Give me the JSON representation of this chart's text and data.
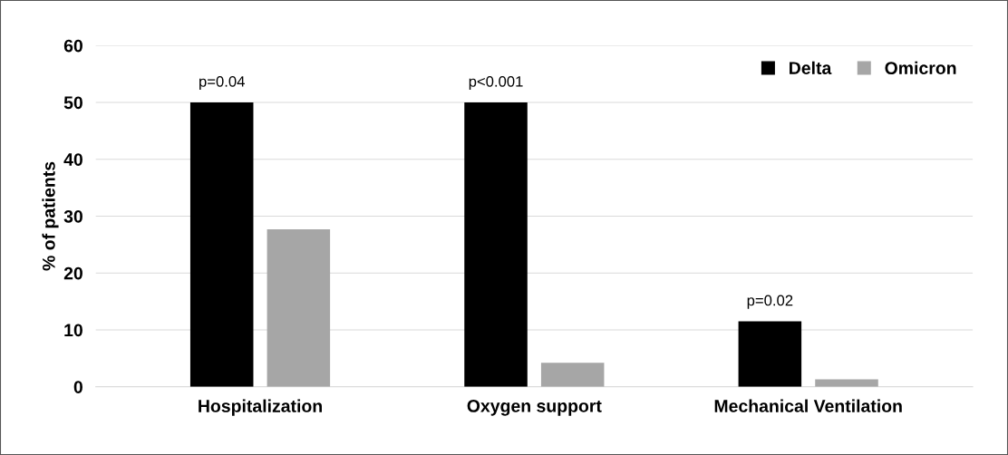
{
  "chart_data": {
    "type": "bar",
    "ylabel": "% of patients",
    "categories": [
      "Hospitalization",
      "Oxygen support",
      "Mechanical Ventilation"
    ],
    "series": [
      {
        "name": "Delta",
        "color": "#000000",
        "values": [
          50,
          50,
          11.5
        ]
      },
      {
        "name": "Omicron",
        "color": "#a6a6a6",
        "values": [
          27.7,
          4.2,
          1.3
        ]
      }
    ],
    "ylim": [
      0,
      60
    ],
    "yticks": [
      0,
      10,
      20,
      30,
      40,
      50,
      60
    ],
    "grid": "y",
    "legend": "top right",
    "annotations": [
      "p=0.04",
      "p<0.001",
      "p=0.02"
    ]
  }
}
